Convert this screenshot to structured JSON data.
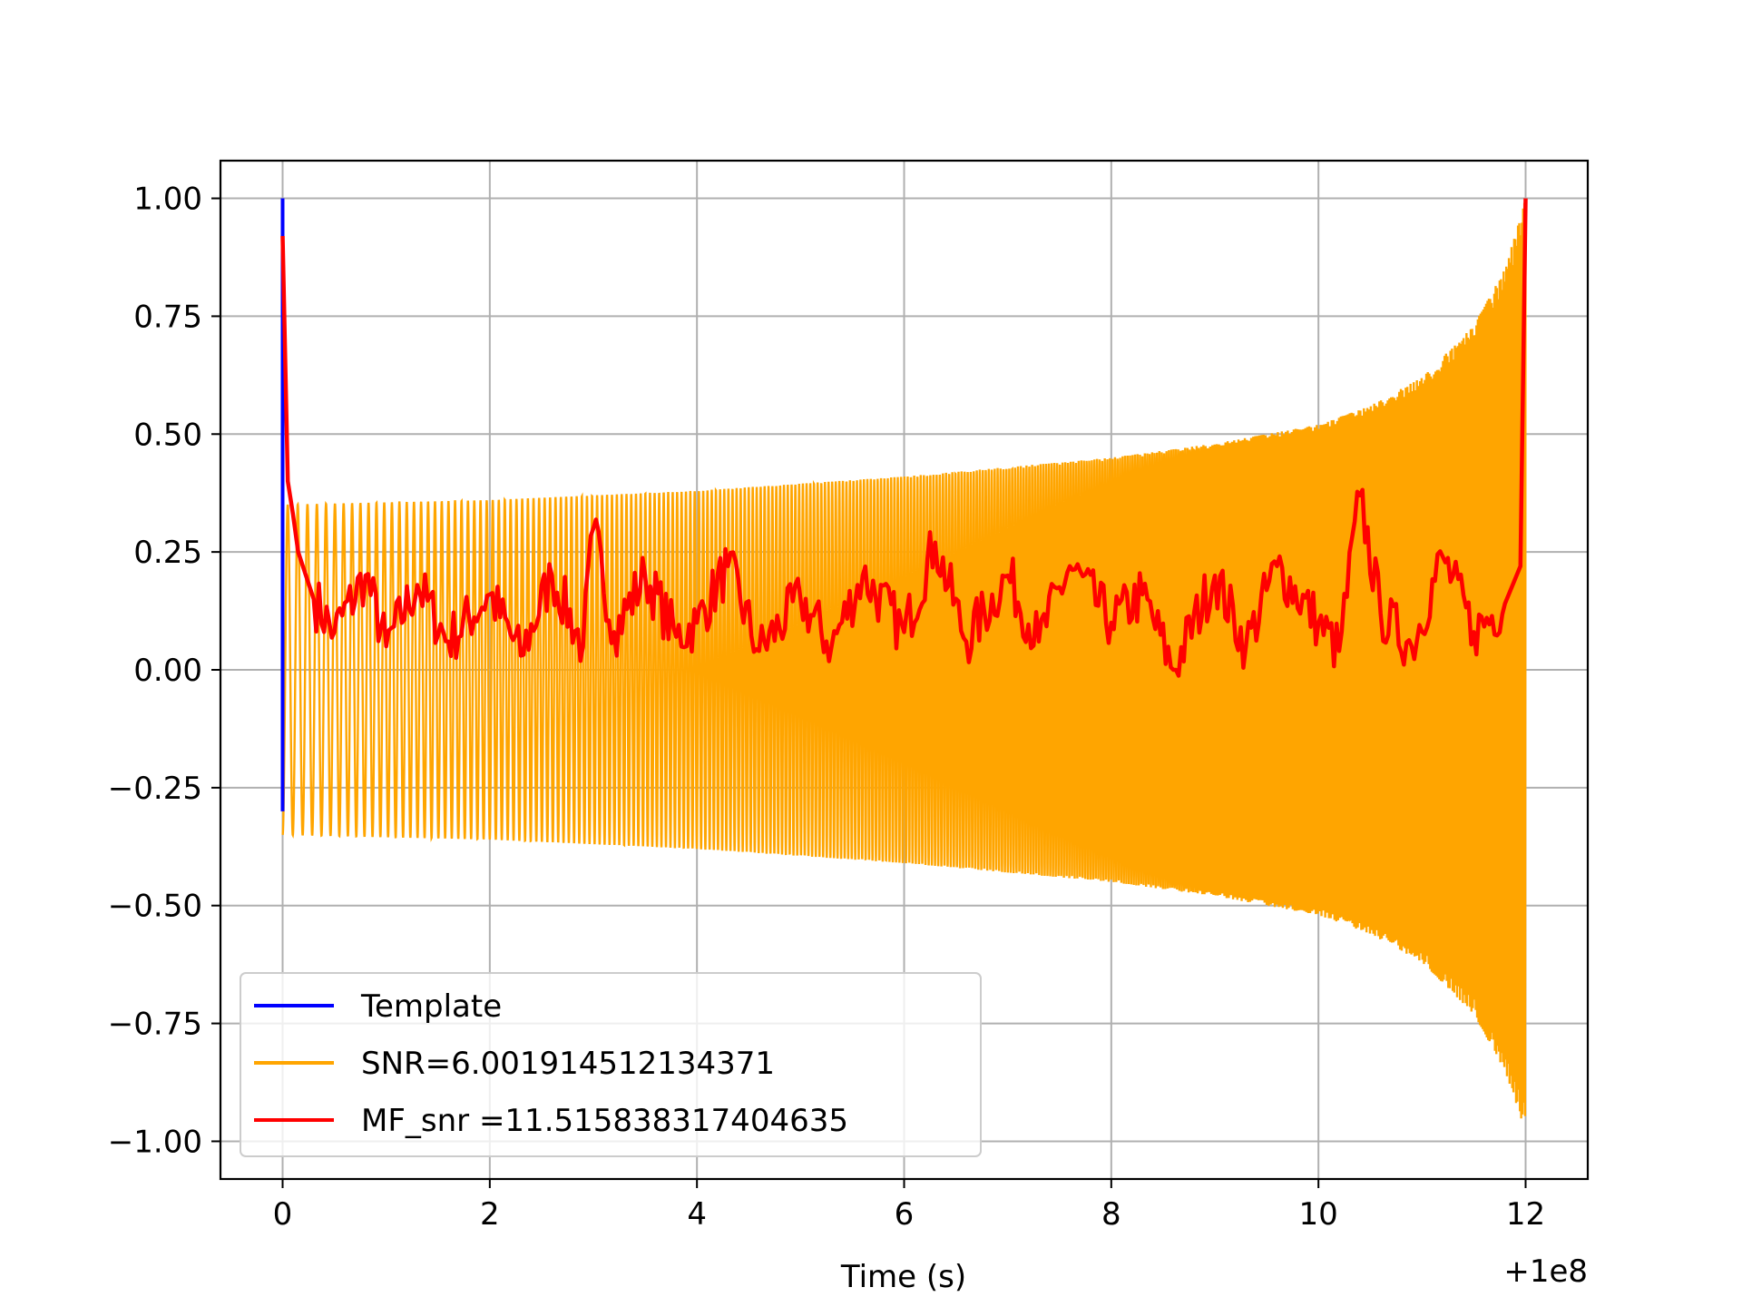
{
  "chart_data": {
    "type": "line",
    "title": "",
    "xlabel": "Time (s)",
    "ylabel": "",
    "x_offset_label": "+1e8",
    "xlim": [
      -0.6,
      12.6
    ],
    "ylim": [
      -1.08,
      1.08
    ],
    "grid": true,
    "legend_position": "lower-left",
    "x_ticks": [
      0,
      2,
      4,
      6,
      8,
      10,
      12
    ],
    "x_tick_labels": [
      "0",
      "2",
      "4",
      "6",
      "8",
      "10",
      "12"
    ],
    "y_ticks": [
      1.0,
      0.75,
      0.5,
      0.25,
      0.0,
      -0.25,
      -0.5,
      -0.75,
      -1.0
    ],
    "y_tick_labels": [
      "1.00",
      "0.75",
      "0.50",
      "0.25",
      "0.00",
      "−0.25",
      "−0.50",
      "−0.75",
      "−1.00"
    ],
    "series": [
      {
        "name": "Template",
        "color": "#0000ff",
        "note_shape": "spike at start",
        "x": [
          0.0,
          0.0,
          0.0
        ],
        "y": [
          -0.3,
          1.0,
          0.3
        ]
      },
      {
        "name": "SNR=6.001914512134371",
        "color": "#ffa500",
        "envelope_x": [
          0,
          2,
          4,
          6,
          8,
          9,
          10,
          10.5,
          11,
          11.5,
          11.8,
          12
        ],
        "envelope_upper": [
          0.35,
          0.36,
          0.38,
          0.41,
          0.45,
          0.48,
          0.52,
          0.56,
          0.62,
          0.73,
          0.85,
          1.0
        ],
        "envelope_lower": [
          -0.35,
          -0.36,
          -0.38,
          -0.41,
          -0.45,
          -0.48,
          -0.52,
          -0.56,
          -0.62,
          -0.73,
          -0.85,
          -0.98
        ]
      },
      {
        "name": "MF_snr =11.515838317404635",
        "color": "#ff0000",
        "x": [
          0.0,
          0.05,
          0.1,
          0.15,
          0.3,
          0.5,
          0.8,
          1.0,
          1.3,
          1.6,
          2.0,
          2.3,
          2.6,
          2.9,
          3.0,
          3.2,
          3.5,
          3.8,
          4.0,
          4.3,
          4.6,
          5.0,
          5.3,
          5.6,
          6.0,
          6.3,
          6.6,
          7.0,
          7.3,
          7.6,
          8.0,
          8.3,
          8.6,
          9.0,
          9.3,
          9.6,
          10.0,
          10.2,
          10.4,
          10.6,
          10.9,
          11.2,
          11.5,
          11.8,
          11.95,
          12.0
        ],
        "y": [
          0.92,
          0.4,
          0.33,
          0.25,
          0.15,
          0.08,
          0.2,
          0.05,
          0.18,
          0.06,
          0.16,
          0.03,
          0.2,
          0.05,
          0.3,
          0.08,
          0.2,
          0.07,
          0.1,
          0.22,
          0.04,
          0.15,
          0.05,
          0.2,
          0.08,
          0.27,
          0.06,
          0.2,
          0.06,
          0.22,
          0.1,
          0.16,
          0.0,
          0.2,
          0.05,
          0.22,
          0.1,
          0.04,
          0.37,
          0.12,
          0.05,
          0.24,
          0.08,
          0.14,
          0.22,
          1.0
        ]
      }
    ]
  }
}
